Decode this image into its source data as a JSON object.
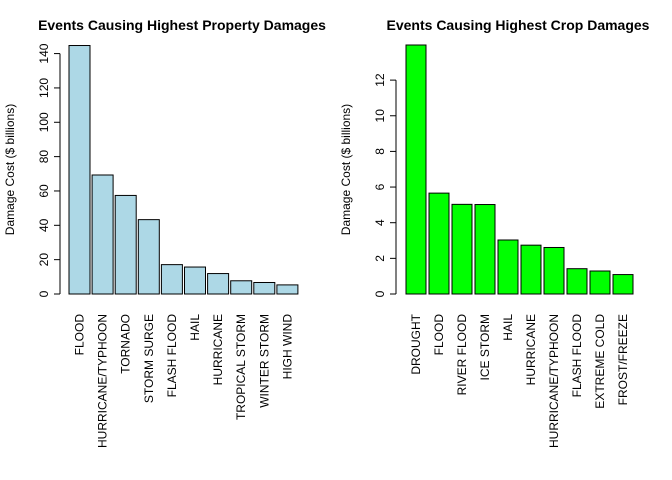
{
  "chart_data": [
    {
      "type": "bar",
      "title": "Events Causing Highest Property Damages",
      "xlabel": "",
      "ylabel": "Damage Cost ($ billions)",
      "ylim": [
        0,
        145
      ],
      "yticks": [
        0,
        20,
        40,
        60,
        80,
        100,
        120,
        140
      ],
      "grid": false,
      "bar_color": "#add8e6",
      "categories": [
        "FLOOD",
        "HURRICANE/TYPHOON",
        "TORNADO",
        "STORM SURGE",
        "FLASH FLOOD",
        "HAIL",
        "HURRICANE",
        "TROPICAL STORM",
        "WINTER STORM",
        "HIGH WIND"
      ],
      "values": [
        144.7,
        69.3,
        57.4,
        43.3,
        17.1,
        15.7,
        11.9,
        7.7,
        6.7,
        5.3
      ]
    },
    {
      "type": "bar",
      "title": "Events Causing Highest Crop Damages",
      "xlabel": "",
      "ylabel": "Damage Cost ($ billions)",
      "ylim": [
        0,
        13.97
      ],
      "yticks": [
        0,
        2,
        4,
        6,
        8,
        10,
        12
      ],
      "grid": false,
      "bar_color": "#00ff00",
      "categories": [
        "DROUGHT",
        "FLOOD",
        "RIVER FLOOD",
        "ICE STORM",
        "HAIL",
        "HURRICANE",
        "HURRICANE/TYPHOON",
        "FLASH FLOOD",
        "EXTREME COLD",
        "FROST/FREEZE"
      ],
      "values": [
        13.97,
        5.66,
        5.03,
        5.02,
        3.03,
        2.74,
        2.61,
        1.42,
        1.29,
        1.09
      ]
    }
  ]
}
